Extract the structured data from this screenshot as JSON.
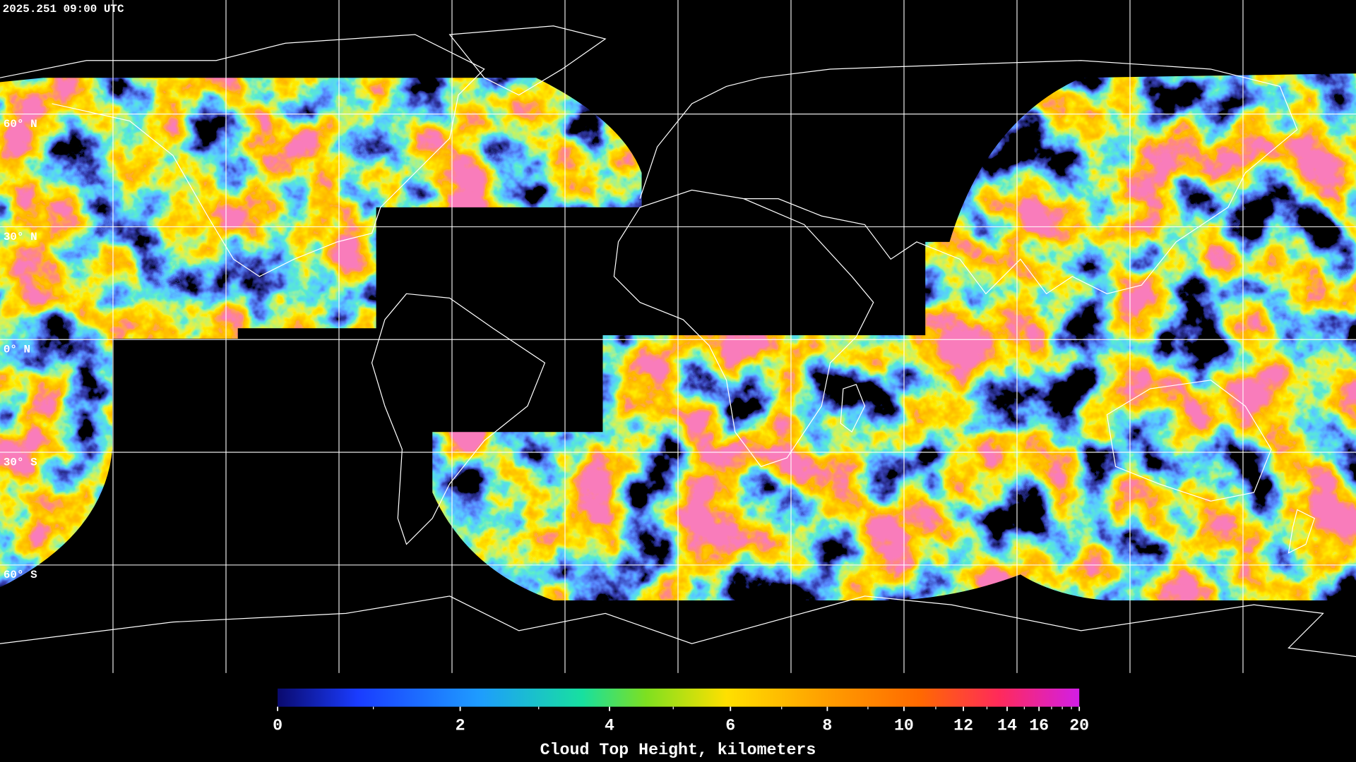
{
  "header": {
    "timestamp": "2025.251 09:00 UTC"
  },
  "map": {
    "lat_labels": [
      "60° N",
      "30° N",
      "0° N",
      "30° S",
      "60° S"
    ]
  },
  "colorbar": {
    "title": "Cloud Top Height, kilometers",
    "range": [
      0,
      20
    ],
    "ticks": [
      0,
      2,
      4,
      6,
      8,
      10,
      12,
      14,
      16,
      20
    ],
    "minor_ticks": [
      1,
      3,
      5,
      7,
      9,
      11,
      13,
      15,
      17,
      18,
      19
    ]
  }
}
